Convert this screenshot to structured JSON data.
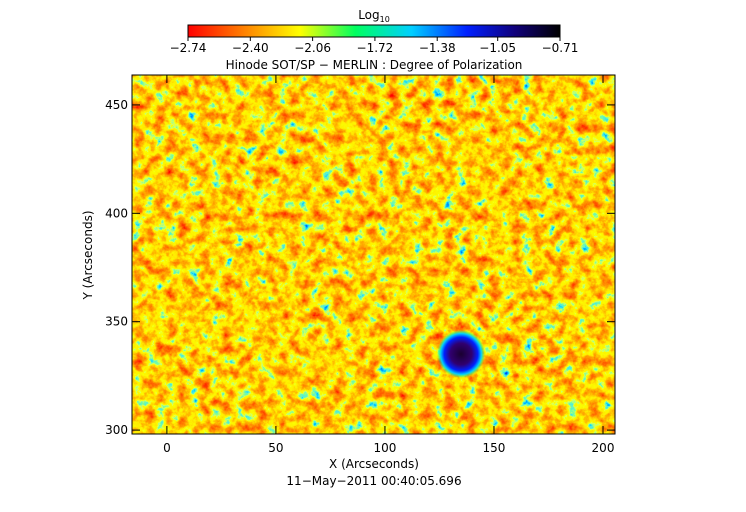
{
  "chart_data": {
    "type": "heatmap",
    "title": "Hinode SOT/SP − MERLIN : Degree of Polarization",
    "xlabel": "X (Arcseconds)",
    "ylabel": "Y (Arcseconds)",
    "footer": "11−May−2011 00:40:05.696",
    "xlim": [
      -16,
      205.5
    ],
    "ylim": [
      298.2,
      463.8
    ],
    "xticks": [
      0,
      50,
      100,
      150,
      200
    ],
    "yticks": [
      300,
      350,
      400,
      450
    ],
    "colorbar": {
      "label": "Log",
      "label_sub": "10",
      "lim": [
        -2.74,
        -0.71
      ],
      "ticks": [
        {
          "value": -2.74,
          "label": "−2.74"
        },
        {
          "value": -2.4,
          "label": "−2.40"
        },
        {
          "value": -2.06,
          "label": "−2.06"
        },
        {
          "value": -1.72,
          "label": "−1.72"
        },
        {
          "value": -1.38,
          "label": "−1.38"
        },
        {
          "value": -1.05,
          "label": "−1.05"
        },
        {
          "value": -0.71,
          "label": "−0.71"
        }
      ]
    }
  }
}
